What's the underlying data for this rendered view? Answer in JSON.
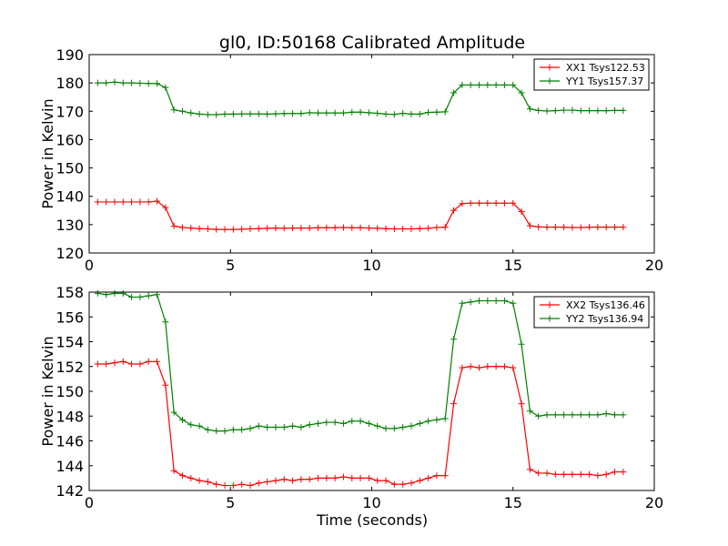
{
  "chart_data": [
    {
      "type": "line",
      "title": "gl0, ID:50168 Calibrated Amplitude",
      "xlabel": "",
      "ylabel": "Power in Kelvin",
      "xlim": [
        0,
        20
      ],
      "ylim": [
        120,
        190
      ],
      "xticks": [
        0,
        5,
        10,
        15,
        20
      ],
      "yticks": [
        120,
        130,
        140,
        150,
        160,
        170,
        180,
        190
      ],
      "grid": false,
      "legend": "top-right",
      "series": [
        {
          "name": "XX1 Tsys122.53",
          "color": "#ff0000",
          "x": [
            0.3,
            0.6,
            0.9,
            1.2,
            1.5,
            1.8,
            2.1,
            2.4,
            2.7,
            3.0,
            3.3,
            3.6,
            3.9,
            4.2,
            4.5,
            4.8,
            5.1,
            5.4,
            5.7,
            6.0,
            6.3,
            6.6,
            6.9,
            7.2,
            7.5,
            7.8,
            8.1,
            8.4,
            8.7,
            9.0,
            9.3,
            9.6,
            9.9,
            10.2,
            10.5,
            10.8,
            11.1,
            11.4,
            11.7,
            12.0,
            12.3,
            12.6,
            12.9,
            13.2,
            13.5,
            13.8,
            14.1,
            14.4,
            14.7,
            15.0,
            15.3,
            15.6,
            15.9,
            16.2,
            16.5,
            16.8,
            17.1,
            17.4,
            17.7,
            18.0,
            18.3,
            18.6,
            18.9
          ],
          "y": [
            138,
            138,
            138,
            138,
            138,
            138,
            138,
            138.3,
            136,
            129.5,
            129,
            128.8,
            128.6,
            128.5,
            128.3,
            128.3,
            128.3,
            128.4,
            128.5,
            128.6,
            128.7,
            128.8,
            128.7,
            128.8,
            128.8,
            128.8,
            128.9,
            128.9,
            128.9,
            129,
            128.9,
            128.9,
            128.8,
            128.7,
            128.6,
            128.5,
            128.5,
            128.5,
            128.6,
            128.7,
            129,
            129.1,
            135,
            137.4,
            137.6,
            137.6,
            137.6,
            137.6,
            137.6,
            137.6,
            134.6,
            129.6,
            129.2,
            129.1,
            129.1,
            129.1,
            129,
            129,
            129.1,
            129.1,
            129.1,
            129.1,
            129.1
          ]
        },
        {
          "name": "YY1 Tsys157.37",
          "color": "#008000",
          "x": [
            0.3,
            0.6,
            0.9,
            1.2,
            1.5,
            1.8,
            2.1,
            2.4,
            2.7,
            3.0,
            3.3,
            3.6,
            3.9,
            4.2,
            4.5,
            4.8,
            5.1,
            5.4,
            5.7,
            6.0,
            6.3,
            6.6,
            6.9,
            7.2,
            7.5,
            7.8,
            8.1,
            8.4,
            8.7,
            9.0,
            9.3,
            9.6,
            9.9,
            10.2,
            10.5,
            10.8,
            11.1,
            11.4,
            11.7,
            12.0,
            12.3,
            12.6,
            12.9,
            13.2,
            13.5,
            13.8,
            14.1,
            14.4,
            14.7,
            15.0,
            15.3,
            15.6,
            15.9,
            16.2,
            16.5,
            16.8,
            17.1,
            17.4,
            17.7,
            18.0,
            18.3,
            18.6,
            18.9
          ],
          "y": [
            180,
            180,
            180.3,
            180,
            180,
            179.9,
            179.8,
            179.8,
            178.4,
            170.5,
            170,
            169.4,
            169,
            168.8,
            168.8,
            169,
            169,
            169.1,
            169.1,
            169.1,
            169,
            169.1,
            169.2,
            169.2,
            169.2,
            169.5,
            169.4,
            169.4,
            169.4,
            169.4,
            169.7,
            169.7,
            169.5,
            169.3,
            169,
            168.9,
            169.3,
            169,
            169,
            169.6,
            169.7,
            169.8,
            176.5,
            179.3,
            179.3,
            179.3,
            179.3,
            179.3,
            179.3,
            179.3,
            176.5,
            170.8,
            170.3,
            170.1,
            170.2,
            170.4,
            170.4,
            170.2,
            170.2,
            170.2,
            170.2,
            170.3,
            170.3
          ]
        }
      ]
    },
    {
      "type": "line",
      "title": "",
      "xlabel": "Time (seconds)",
      "ylabel": "Power in Kelvin",
      "xlim": [
        0,
        20
      ],
      "ylim": [
        142,
        158
      ],
      "xticks": [
        0,
        5,
        10,
        15,
        20
      ],
      "yticks": [
        142,
        144,
        146,
        148,
        150,
        152,
        154,
        156,
        158
      ],
      "grid": false,
      "legend": "top-right",
      "series": [
        {
          "name": "XX2 Tsys136.46",
          "color": "#ff0000",
          "x": [
            0.3,
            0.6,
            0.9,
            1.2,
            1.5,
            1.8,
            2.1,
            2.4,
            2.7,
            3.0,
            3.3,
            3.6,
            3.9,
            4.2,
            4.5,
            4.8,
            5.1,
            5.4,
            5.7,
            6.0,
            6.3,
            6.6,
            6.9,
            7.2,
            7.5,
            7.8,
            8.1,
            8.4,
            8.7,
            9.0,
            9.3,
            9.6,
            9.9,
            10.2,
            10.5,
            10.8,
            11.1,
            11.4,
            11.7,
            12.0,
            12.3,
            12.6,
            12.9,
            13.2,
            13.5,
            13.8,
            14.1,
            14.4,
            14.7,
            15.0,
            15.3,
            15.6,
            15.9,
            16.2,
            16.5,
            16.8,
            17.1,
            17.4,
            17.7,
            18.0,
            18.3,
            18.6,
            18.9
          ],
          "y": [
            152.2,
            152.2,
            152.3,
            152.4,
            152.2,
            152.2,
            152.4,
            152.4,
            150.5,
            143.6,
            143.2,
            143,
            142.8,
            142.7,
            142.5,
            142.4,
            142.4,
            142.5,
            142.4,
            142.6,
            142.7,
            142.8,
            142.9,
            142.8,
            142.9,
            142.9,
            143,
            143,
            143,
            143.1,
            143,
            143,
            143,
            142.8,
            142.8,
            142.5,
            142.5,
            142.6,
            142.8,
            143,
            143.2,
            143.2,
            149,
            151.9,
            152,
            151.9,
            152,
            152,
            152,
            151.9,
            149,
            143.7,
            143.4,
            143.4,
            143.3,
            143.3,
            143.3,
            143.3,
            143.3,
            143.2,
            143.3,
            143.5,
            143.5
          ]
        },
        {
          "name": "YY2 Tsys136.94",
          "color": "#008000",
          "x": [
            0.3,
            0.6,
            0.9,
            1.2,
            1.5,
            1.8,
            2.1,
            2.4,
            2.7,
            3.0,
            3.3,
            3.6,
            3.9,
            4.2,
            4.5,
            4.8,
            5.1,
            5.4,
            5.7,
            6.0,
            6.3,
            6.6,
            6.9,
            7.2,
            7.5,
            7.8,
            8.1,
            8.4,
            8.7,
            9.0,
            9.3,
            9.6,
            9.9,
            10.2,
            10.5,
            10.8,
            11.1,
            11.4,
            11.7,
            12.0,
            12.3,
            12.6,
            12.9,
            13.2,
            13.5,
            13.8,
            14.1,
            14.4,
            14.7,
            15.0,
            15.3,
            15.6,
            15.9,
            16.2,
            16.5,
            16.8,
            17.1,
            17.4,
            17.7,
            18.0,
            18.3,
            18.6,
            18.9
          ],
          "y": [
            157.9,
            157.8,
            157.9,
            157.9,
            157.6,
            157.6,
            157.7,
            157.8,
            155.6,
            148.3,
            147.7,
            147.3,
            147.2,
            146.9,
            146.8,
            146.8,
            146.9,
            146.9,
            147,
            147.2,
            147.1,
            147.1,
            147.1,
            147.2,
            147.1,
            147.3,
            147.4,
            147.5,
            147.5,
            147.4,
            147.6,
            147.6,
            147.4,
            147.2,
            147,
            147,
            147.1,
            147.2,
            147.4,
            147.6,
            147.7,
            147.8,
            154.2,
            157.1,
            157.2,
            157.3,
            157.3,
            157.3,
            157.3,
            157.1,
            153.8,
            148.4,
            148,
            148.1,
            148.1,
            148.1,
            148.1,
            148.1,
            148.1,
            148.1,
            148.2,
            148.1,
            148.1
          ]
        }
      ]
    }
  ]
}
